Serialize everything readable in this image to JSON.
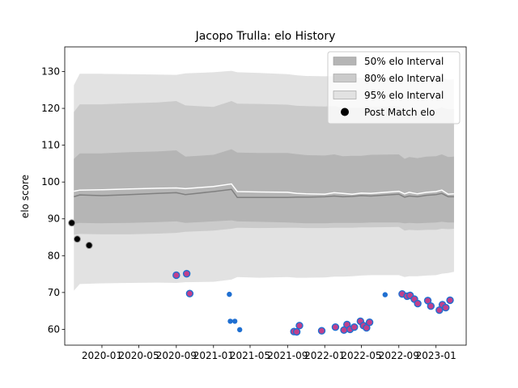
{
  "chart_data": {
    "type": "line",
    "title": "Jacopo Trulla: elo History",
    "xlabel": "",
    "ylabel": "elo score",
    "xlim": [
      "2019-09-01",
      "2023-04-10"
    ],
    "ylim": [
      55.7,
      136.7
    ],
    "y_ticks": [
      60,
      70,
      80,
      90,
      100,
      110,
      120,
      130
    ],
    "x_ticks": [
      {
        "date": "2020-01-01",
        "label": "2020-01"
      },
      {
        "date": "2020-05-01",
        "label": "2020-05"
      },
      {
        "date": "2020-09-01",
        "label": "2020-09"
      },
      {
        "date": "2021-01-01",
        "label": "2021-01"
      },
      {
        "date": "2021-05-01",
        "label": "2021-05"
      },
      {
        "date": "2021-09-01",
        "label": "2021-09"
      },
      {
        "date": "2022-01-01",
        "label": "2022-01"
      },
      {
        "date": "2022-05-01",
        "label": "2022-05"
      },
      {
        "date": "2022-09-01",
        "label": "2022-09"
      },
      {
        "date": "2023-01-01",
        "label": "2023-01"
      }
    ],
    "legend": {
      "placement": "top-right",
      "entries": [
        "50% elo Interval",
        "80% elo Interval",
        "95% elo Interval",
        "Post Match elo"
      ]
    },
    "colors": {
      "band95": "#e2e2e2",
      "band80": "#cbcbcb",
      "band50": "#b5b5b5",
      "mean_line": "#ffffff",
      "median_line": "#808080",
      "post_match": "#000000",
      "blue_marker": "#1f6fd1",
      "purple_edge": "#c0408c"
    },
    "series": [
      {
        "name": "elo",
        "kind": "interval_bands",
        "x": [
          "2019-10-01",
          "2019-10-20",
          "2020-01-01",
          "2020-04-01",
          "2020-07-01",
          "2020-09-01",
          "2020-10-01",
          "2021-01-01",
          "2021-03-01",
          "2021-03-20",
          "2021-06-01",
          "2021-09-01",
          "2021-10-01",
          "2021-11-01",
          "2022-01-01",
          "2022-02-01",
          "2022-03-01",
          "2022-04-01",
          "2022-05-01",
          "2022-06-01",
          "2022-09-01",
          "2022-09-20",
          "2022-10-05",
          "2022-11-01",
          "2022-12-01",
          "2023-01-01",
          "2023-01-20",
          "2023-02-10",
          "2023-03-01"
        ],
        "mean": [
          97.5,
          97.8,
          97.9,
          98.1,
          98.3,
          98.4,
          98.2,
          98.8,
          99.5,
          97.4,
          97.3,
          97.2,
          96.9,
          96.8,
          96.7,
          97.1,
          96.9,
          96.7,
          97.0,
          96.9,
          97.5,
          96.8,
          97.2,
          96.8,
          97.2,
          97.4,
          97.8,
          96.7,
          96.8
        ],
        "median": [
          96.0,
          96.5,
          96.3,
          96.6,
          96.9,
          97.1,
          96.6,
          97.4,
          98.0,
          95.8,
          95.8,
          95.8,
          95.9,
          95.9,
          96.0,
          96.2,
          96.0,
          96.1,
          96.3,
          96.2,
          96.7,
          95.9,
          96.2,
          96.0,
          96.4,
          96.6,
          96.9,
          96.0,
          96.0
        ],
        "p25": [
          88.7,
          88.9,
          88.8,
          88.9,
          89.1,
          89.3,
          88.9,
          89.3,
          89.6,
          89.3,
          89.2,
          89.0,
          88.9,
          88.8,
          88.8,
          88.9,
          88.9,
          88.9,
          88.9,
          89.0,
          89.0,
          88.8,
          88.9,
          88.8,
          88.9,
          89.0,
          89.2,
          89.0,
          89.0
        ],
        "p75": [
          106.3,
          107.8,
          107.8,
          108.1,
          108.3,
          108.6,
          106.9,
          107.4,
          108.9,
          108.0,
          107.9,
          107.9,
          107.6,
          107.3,
          107.2,
          107.5,
          107.0,
          107.1,
          107.1,
          107.4,
          107.5,
          106.3,
          106.8,
          106.5,
          106.9,
          107.0,
          107.5,
          106.8,
          106.9
        ],
        "p10": [
          85.7,
          85.9,
          85.8,
          85.8,
          86.0,
          86.2,
          86.5,
          86.8,
          87.3,
          87.6,
          87.5,
          87.6,
          87.6,
          87.5,
          87.5,
          87.6,
          87.6,
          87.6,
          87.7,
          87.7,
          87.8,
          86.8,
          87.0,
          86.9,
          87.0,
          87.0,
          87.3,
          87.2,
          87.3
        ],
        "p90": [
          119.0,
          121.1,
          121.1,
          121.4,
          121.6,
          122.0,
          120.8,
          120.4,
          122.0,
          121.3,
          121.2,
          121.0,
          120.7,
          120.6,
          120.5,
          120.6,
          120.1,
          120.2,
          120.2,
          120.4,
          120.5,
          119.3,
          119.6,
          119.4,
          119.7,
          119.7,
          120.3,
          119.7,
          119.8
        ],
        "p025": [
          70.5,
          72.3,
          72.5,
          72.6,
          72.7,
          72.6,
          72.8,
          72.9,
          73.5,
          74.2,
          74.0,
          74.2,
          74.0,
          74.0,
          74.1,
          74.3,
          74.3,
          74.4,
          74.6,
          74.7,
          74.7,
          74.2,
          74.4,
          74.4,
          74.6,
          74.7,
          75.1,
          75.3,
          75.6
        ],
        "p975": [
          126.3,
          129.4,
          129.4,
          129.3,
          129.2,
          129.1,
          129.5,
          129.8,
          130.2,
          129.8,
          129.6,
          129.3,
          129.0,
          128.8,
          128.7,
          128.8,
          128.4,
          128.5,
          128.3,
          128.5,
          128.4,
          127.7,
          127.8,
          127.7,
          127.7,
          127.8,
          128.3,
          127.8,
          127.9
        ]
      },
      {
        "name": "Post Match elo",
        "kind": "scatter_black",
        "points": [
          {
            "x": "2019-09-24",
            "y": 88.9
          },
          {
            "x": "2019-10-12",
            "y": 84.5
          },
          {
            "x": "2019-11-20",
            "y": 82.8
          }
        ]
      },
      {
        "name": "",
        "kind": "scatter_purple",
        "points": [
          {
            "x": "2020-09-01",
            "y": 74.7
          },
          {
            "x": "2020-10-05",
            "y": 75.1
          },
          {
            "x": "2020-10-15",
            "y": 69.7
          },
          {
            "x": "2021-09-22",
            "y": 59.4
          },
          {
            "x": "2021-10-01",
            "y": 59.3
          },
          {
            "x": "2021-10-10",
            "y": 61.0
          },
          {
            "x": "2021-12-22",
            "y": 59.6
          },
          {
            "x": "2022-02-05",
            "y": 60.6
          },
          {
            "x": "2022-03-05",
            "y": 59.8
          },
          {
            "x": "2022-03-15",
            "y": 61.3
          },
          {
            "x": "2022-03-25",
            "y": 60.0
          },
          {
            "x": "2022-04-08",
            "y": 60.6
          },
          {
            "x": "2022-04-28",
            "y": 62.2
          },
          {
            "x": "2022-05-08",
            "y": 61.0
          },
          {
            "x": "2022-05-18",
            "y": 60.4
          },
          {
            "x": "2022-05-28",
            "y": 61.9
          },
          {
            "x": "2022-09-12",
            "y": 69.6
          },
          {
            "x": "2022-09-28",
            "y": 69.0
          },
          {
            "x": "2022-10-08",
            "y": 69.2
          },
          {
            "x": "2022-10-22",
            "y": 68.2
          },
          {
            "x": "2022-11-02",
            "y": 67.0
          },
          {
            "x": "2022-12-05",
            "y": 67.8
          },
          {
            "x": "2022-12-15",
            "y": 66.3
          },
          {
            "x": "2023-01-12",
            "y": 65.2
          },
          {
            "x": "2023-01-22",
            "y": 66.7
          },
          {
            "x": "2023-02-02",
            "y": 65.9
          },
          {
            "x": "2023-02-16",
            "y": 67.9
          }
        ]
      },
      {
        "name": "",
        "kind": "scatter_blue",
        "points": [
          {
            "x": "2021-02-22",
            "y": 69.5
          },
          {
            "x": "2021-02-25",
            "y": 62.2
          },
          {
            "x": "2021-03-12",
            "y": 62.2
          },
          {
            "x": "2021-03-28",
            "y": 59.9
          },
          {
            "x": "2022-07-18",
            "y": 69.4
          }
        ]
      }
    ]
  }
}
